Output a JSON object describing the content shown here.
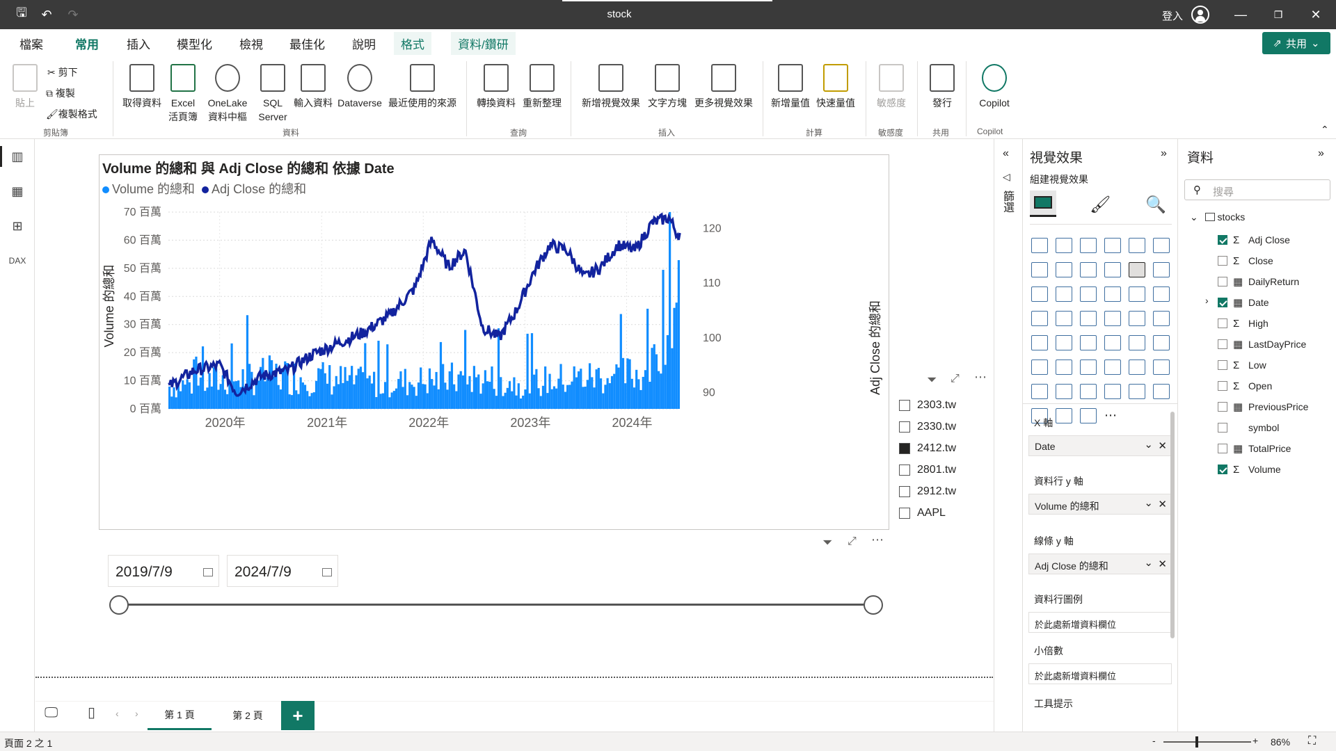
{
  "window": {
    "title": "stock",
    "login": "登入"
  },
  "menu": {
    "tabs": [
      "檔案",
      "常用",
      "插入",
      "模型化",
      "檢視",
      "最佳化",
      "說明",
      "格式",
      "資料/鑽研"
    ],
    "active": "常用",
    "share": "共用"
  },
  "ribbon": {
    "clipboard": {
      "paste": "貼上",
      "cut": "剪下",
      "copy": "複製",
      "format": "複製格式",
      "group": "剪貼簿"
    },
    "data": {
      "get": "取得資料",
      "excel": "Excel\n活頁簿",
      "onelake": "OneLake\n資料中樞",
      "sql": "SQL\nServer",
      "enter": "輸入資料",
      "dataverse": "Dataverse",
      "recent": "最近使用的來源",
      "group": "資料"
    },
    "query": {
      "transform": "轉換資料",
      "refresh": "重新整理",
      "group": "查詢"
    },
    "insert": {
      "newvisual": "新增視覺效果",
      "textbox": "文字方塊",
      "morevisuals": "更多視覺效果",
      "group": "插入"
    },
    "calc": {
      "newmeasure": "新增量值",
      "quickmeasure": "快速量值",
      "group": "計算"
    },
    "sens": {
      "label": "敏感度",
      "group": "敏感度"
    },
    "share": {
      "publish": "發行",
      "group": "共用"
    },
    "copilot": {
      "label": "Copilot",
      "group": "Copilot"
    }
  },
  "chart": {
    "title": "Volume 的總和 與 Adj Close 的總和 依據 Date",
    "legend": [
      "Volume 的總和",
      "Adj Close 的總和"
    ],
    "colors": {
      "bars": "#118DFF",
      "line": "#12239E"
    }
  },
  "chart_data": {
    "type": "bar",
    "title": "Volume 的總和 與 Adj Close 的總和 依據 Date",
    "ylabel": "Volume 的總和",
    "y2label": "Adj Close 的總和",
    "x_ticks": [
      "2020年",
      "2021年",
      "2022年",
      "2023年",
      "2024年"
    ],
    "y_ticks": [
      "0 百萬",
      "10 百萬",
      "20 百萬",
      "30 百萬",
      "40 百萬",
      "50 百萬",
      "60 百萬",
      "70 百萬"
    ],
    "y2_ticks": [
      "90",
      "100",
      "110",
      "120"
    ],
    "ylim": [
      0,
      70
    ],
    "y2lim": [
      87,
      123
    ],
    "series": [
      {
        "name": "Volume 的總和",
        "type": "bar",
        "x": [
          "2019-07",
          "2020-01",
          "2020-07",
          "2021-01",
          "2021-07",
          "2022-01",
          "2022-07",
          "2023-01",
          "2023-07",
          "2024-01",
          "2024-04",
          "2024-07"
        ],
        "values": [
          8,
          10,
          12,
          11,
          9,
          10,
          11,
          9,
          11,
          12,
          14,
          60
        ]
      },
      {
        "name": "Adj Close 的總和",
        "type": "line",
        "x": [
          "2019-07",
          "2019-10",
          "2020-01",
          "2020-03",
          "2020-06",
          "2020-09",
          "2020-12",
          "2021-03",
          "2021-06",
          "2021-09",
          "2021-12",
          "2022-02",
          "2022-04",
          "2022-06",
          "2022-08",
          "2022-10",
          "2022-12",
          "2023-02",
          "2023-04",
          "2023-06",
          "2023-08",
          "2023-10",
          "2023-12",
          "2024-02",
          "2024-04",
          "2024-06",
          "2024-07"
        ],
        "values": [
          91,
          94,
          95,
          90,
          93,
          94,
          97,
          99,
          101,
          104,
          109,
          118,
          113,
          116,
          102,
          100,
          105,
          112,
          117,
          116,
          111,
          113,
          117,
          116,
          121,
          122,
          119
        ]
      }
    ]
  },
  "slicer": {
    "items": [
      "2303.tw",
      "2330.tw",
      "2412.tw",
      "2801.tw",
      "2912.tw",
      "AAPL"
    ],
    "checked": "2412.tw"
  },
  "daterange": {
    "start": "2019/7/9",
    "end": "2024/7/9"
  },
  "pages": [
    "第 1 頁",
    "第 2 頁"
  ],
  "status": {
    "page": "頁面 2 之 1",
    "zoom": "86%"
  },
  "filters": {
    "label": "篩選"
  },
  "viz": {
    "title": "視覺效果",
    "build": "組建視覺效果",
    "xaxis": {
      "label": "X 軸",
      "field": "Date"
    },
    "coly": {
      "label": "資料行 y 軸",
      "field": "Volume 的總和"
    },
    "liney": {
      "label": "線條 y 軸",
      "field": "Adj Close 的總和"
    },
    "legend": {
      "label": "資料行圖例",
      "placeholder": "於此處新增資料欄位"
    },
    "small": {
      "label": "小倍數",
      "placeholder": "於此處新增資料欄位"
    },
    "tooltip": {
      "label": "工具提示"
    }
  },
  "data": {
    "title": "資料",
    "search": "搜尋",
    "table": "stocks",
    "fields": [
      {
        "name": "Adj Close",
        "icon": "Σ",
        "checked": true
      },
      {
        "name": "Close",
        "icon": "Σ",
        "checked": false
      },
      {
        "name": "DailyReturn",
        "icon": "▦",
        "checked": false
      },
      {
        "name": "Date",
        "icon": "▦",
        "checked": true
      },
      {
        "name": "High",
        "icon": "Σ",
        "checked": false
      },
      {
        "name": "LastDayPrice",
        "icon": "▦",
        "checked": false
      },
      {
        "name": "Low",
        "icon": "Σ",
        "checked": false
      },
      {
        "name": "Open",
        "icon": "Σ",
        "checked": false
      },
      {
        "name": "PreviousPrice",
        "icon": "▦",
        "checked": false
      },
      {
        "name": "symbol",
        "icon": "",
        "checked": false
      },
      {
        "name": "TotalPrice",
        "icon": "▦",
        "checked": false
      },
      {
        "name": "Volume",
        "icon": "Σ",
        "checked": true
      }
    ]
  }
}
